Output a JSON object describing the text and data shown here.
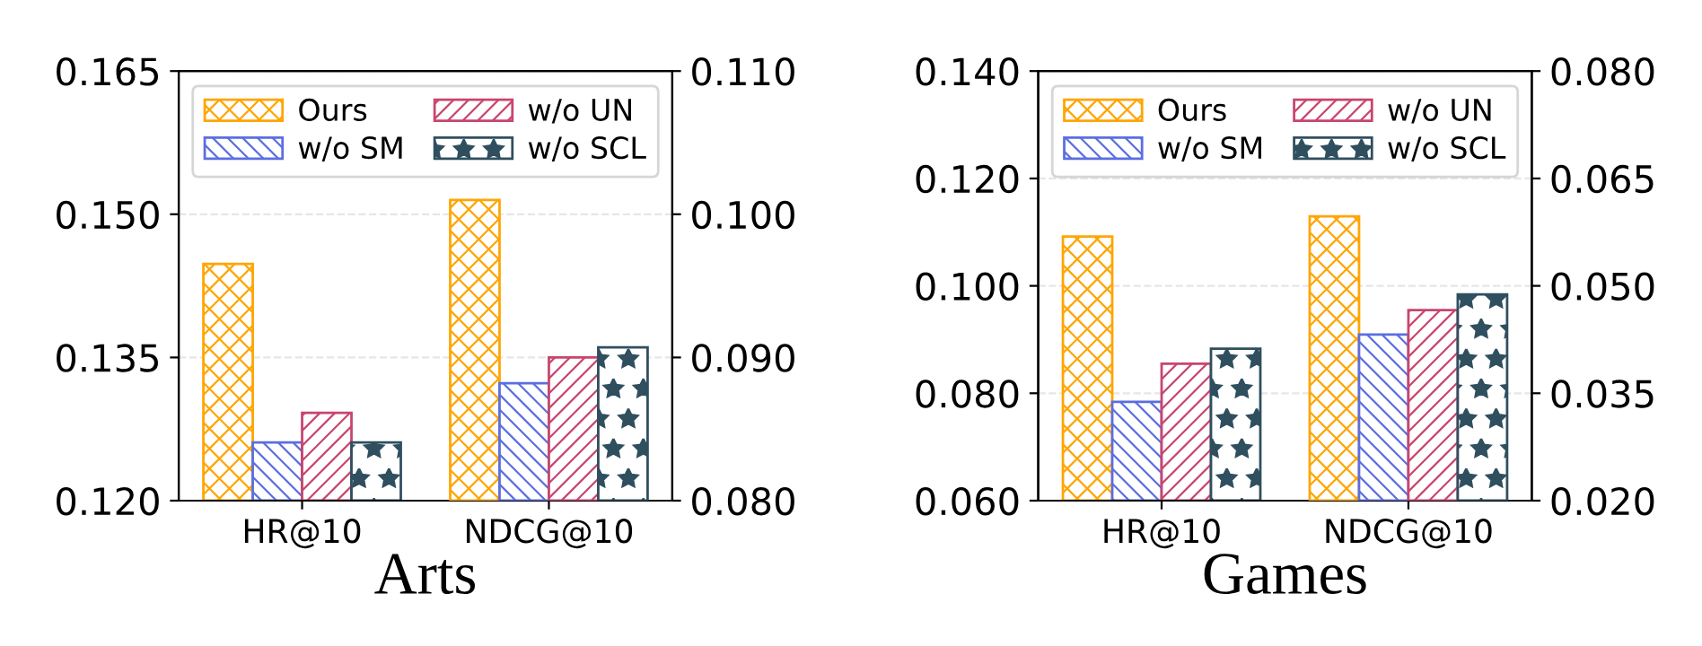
{
  "chart_data": [
    {
      "type": "bar",
      "xlabel": "Arts",
      "categories": [
        "HR@10",
        "NDCG@10"
      ],
      "ylim": [
        0.12,
        0.165
      ],
      "yticks": [
        {
          "value": 0.12,
          "label": "0.120"
        },
        {
          "value": 0.135,
          "label": "0.135"
        },
        {
          "value": 0.15,
          "label": "0.150"
        },
        {
          "value": 0.165,
          "label": "0.165"
        }
      ],
      "y2lim": [
        0.08,
        0.11
      ],
      "y2ticks": [
        {
          "value": 0.08,
          "label": "0.080"
        },
        {
          "value": 0.09,
          "label": "0.090"
        },
        {
          "value": 0.1,
          "label": "0.100"
        },
        {
          "value": 0.11,
          "label": "0.110"
        }
      ],
      "grid": "y",
      "legend": "top",
      "series": [
        {
          "name": "Ours",
          "color": "#ffa500",
          "values": [
            0.1448,
            null
          ]
        },
        {
          "name": "w/o SM",
          "color": "#5b6ee1",
          "values": [
            0.1261,
            null
          ]
        },
        {
          "name": "w/o UN",
          "color": "#c8456e",
          "values": [
            0.1292,
            null
          ]
        },
        {
          "name": "w/o SCL",
          "color": "#2f4f5f",
          "values": [
            0.1261,
            null
          ]
        },
        {
          "color": "#ffa500",
          "values": [
            null,
            0.101
          ],
          "axis": "y2"
        },
        {
          "color": "#5b6ee1",
          "values": [
            null,
            0.0882
          ],
          "axis": "y2"
        },
        {
          "color": "#c8456e",
          "values": [
            null,
            0.09
          ],
          "axis": "y2"
        },
        {
          "color": "#2f4f5f",
          "values": [
            null,
            0.0907
          ],
          "axis": "y2"
        }
      ]
    },
    {
      "type": "bar",
      "xlabel": "Games",
      "categories": [
        "HR@10",
        "NDCG@10"
      ],
      "ylim": [
        0.06,
        0.14
      ],
      "yticks": [
        {
          "value": 0.06,
          "label": "0.060"
        },
        {
          "value": 0.08,
          "label": "0.080"
        },
        {
          "value": 0.1,
          "label": "0.100"
        },
        {
          "value": 0.12,
          "label": "0.120"
        },
        {
          "value": 0.14,
          "label": "0.140"
        }
      ],
      "y2lim": [
        0.02,
        0.08
      ],
      "y2ticks": [
        {
          "value": 0.02,
          "label": "0.020"
        },
        {
          "value": 0.035,
          "label": "0.035"
        },
        {
          "value": 0.05,
          "label": "0.050"
        },
        {
          "value": 0.065,
          "label": "0.065"
        },
        {
          "value": 0.08,
          "label": "0.080"
        }
      ],
      "grid": "y",
      "legend": "top",
      "series": [
        {
          "name": "Ours",
          "color": "#ffa500",
          "values": [
            0.1092,
            null
          ]
        },
        {
          "name": "w/o SM",
          "color": "#5b6ee1",
          "values": [
            0.0784,
            null
          ]
        },
        {
          "name": "w/o UN",
          "color": "#c8456e",
          "values": [
            0.0855,
            null
          ]
        },
        {
          "name": "w/o SCL",
          "color": "#2f4f5f",
          "values": [
            0.0883,
            null
          ]
        },
        {
          "color": "#ffa500",
          "values": [
            null,
            0.0597
          ],
          "axis": "y2"
        },
        {
          "color": "#5b6ee1",
          "values": [
            null,
            0.0432
          ],
          "axis": "y2"
        },
        {
          "color": "#c8456e",
          "values": [
            null,
            0.0466
          ],
          "axis": "y2"
        },
        {
          "color": "#2f4f5f",
          "values": [
            null,
            0.0488
          ],
          "axis": "y2"
        }
      ]
    }
  ]
}
